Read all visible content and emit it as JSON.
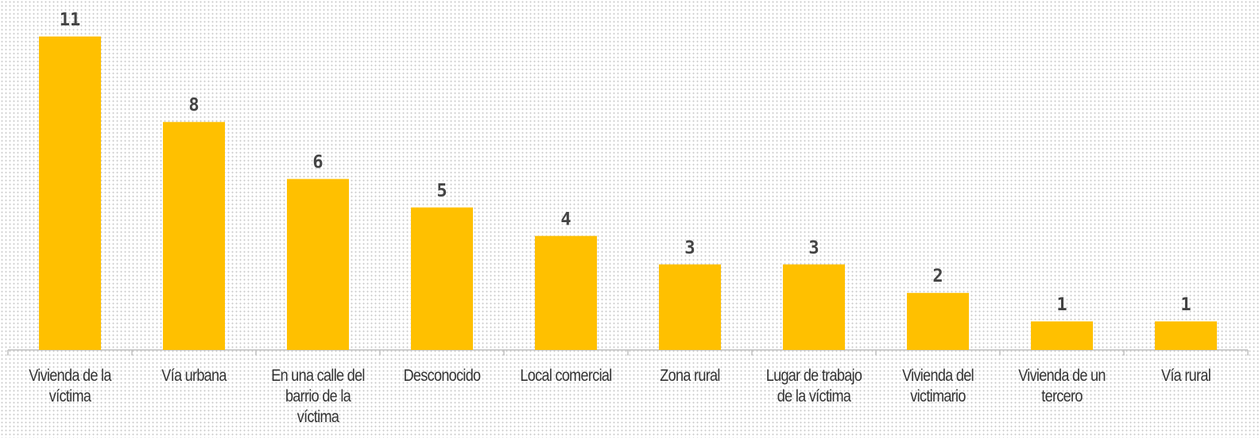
{
  "chart_data": {
    "type": "bar",
    "categories": [
      "Vivienda de la víctima",
      "Vía urbana",
      "En una calle del barrio de la víctima",
      "Desconocido",
      "Local comercial",
      "Zona rural",
      "Lugar de trabajo de la víctima",
      "Vivienda del victimario",
      "Vivienda de un tercero",
      "Vía rural"
    ],
    "values": [
      11,
      8,
      6,
      5,
      4,
      3,
      3,
      2,
      1,
      1
    ],
    "color": "#ffc000"
  }
}
